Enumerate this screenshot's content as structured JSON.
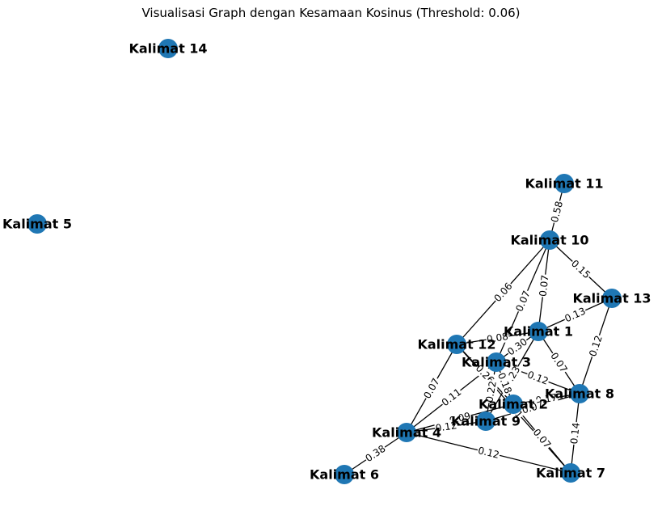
{
  "title": "Visualisasi Graph dengan Kesamaan Kosinus (Threshold: 0.06)",
  "colors": {
    "node": "#1f77b4",
    "edge": "#000000",
    "background": "#ffffff"
  },
  "nodes": [
    {
      "id": "k1",
      "label": "Kalimat 1"
    },
    {
      "id": "k2",
      "label": "Kalimat 2"
    },
    {
      "id": "k3",
      "label": "Kalimat 3"
    },
    {
      "id": "k4",
      "label": "Kalimat 4"
    },
    {
      "id": "k5",
      "label": "Kalimat 5"
    },
    {
      "id": "k6",
      "label": "Kalimat 6"
    },
    {
      "id": "k7",
      "label": "Kalimat 7"
    },
    {
      "id": "k8",
      "label": "Kalimat 8"
    },
    {
      "id": "k9",
      "label": "Kalimat 9"
    },
    {
      "id": "k10",
      "label": "Kalimat 10"
    },
    {
      "id": "k11",
      "label": "Kalimat 11"
    },
    {
      "id": "k12",
      "label": "Kalimat 12"
    },
    {
      "id": "k13",
      "label": "Kalimat 13"
    },
    {
      "id": "k14",
      "label": "Kalimat 14"
    }
  ],
  "edges": [
    {
      "source": "k11",
      "target": "k10",
      "weight": "0.58"
    },
    {
      "source": "k10",
      "target": "k13",
      "weight": "0.15"
    },
    {
      "source": "k10",
      "target": "k12",
      "weight": "0.06"
    },
    {
      "source": "k10",
      "target": "k1",
      "weight": "0.07"
    },
    {
      "source": "k10",
      "target": "k3",
      "weight": "0.07"
    },
    {
      "source": "k13",
      "target": "k1",
      "weight": "0.13"
    },
    {
      "source": "k13",
      "target": "k8",
      "weight": "0.12"
    },
    {
      "source": "k1",
      "target": "k12",
      "weight": "0.08"
    },
    {
      "source": "k1",
      "target": "k3",
      "weight": "0.30"
    },
    {
      "source": "k1",
      "target": "k8",
      "weight": "0.07"
    },
    {
      "source": "k1",
      "target": "k9",
      "weight": "0.23"
    },
    {
      "source": "k12",
      "target": "k2",
      "weight": "0.26"
    },
    {
      "source": "k12",
      "target": "k4",
      "weight": "0.07"
    },
    {
      "source": "k12",
      "target": "k7",
      "weight": "0.11"
    },
    {
      "source": "k3",
      "target": "k4",
      "weight": "0.11"
    },
    {
      "source": "k3",
      "target": "k8",
      "weight": "0.12"
    },
    {
      "source": "k3",
      "target": "k2",
      "weight": "0.18"
    },
    {
      "source": "k3",
      "target": "k9",
      "weight": "0.22"
    },
    {
      "source": "k2",
      "target": "k8",
      "weight": "0.17"
    },
    {
      "source": "k2",
      "target": "k4",
      "weight": "0.09"
    },
    {
      "source": "k9",
      "target": "k8",
      "weight": "0.07"
    },
    {
      "source": "k2",
      "target": "k7",
      "weight": "0.07"
    },
    {
      "source": "k4",
      "target": "k9",
      "weight": "0.12"
    },
    {
      "source": "k4",
      "target": "k6",
      "weight": "0.38"
    },
    {
      "source": "k4",
      "target": "k7",
      "weight": "0.12"
    },
    {
      "source": "k8",
      "target": "k7",
      "weight": "0.14"
    }
  ]
}
